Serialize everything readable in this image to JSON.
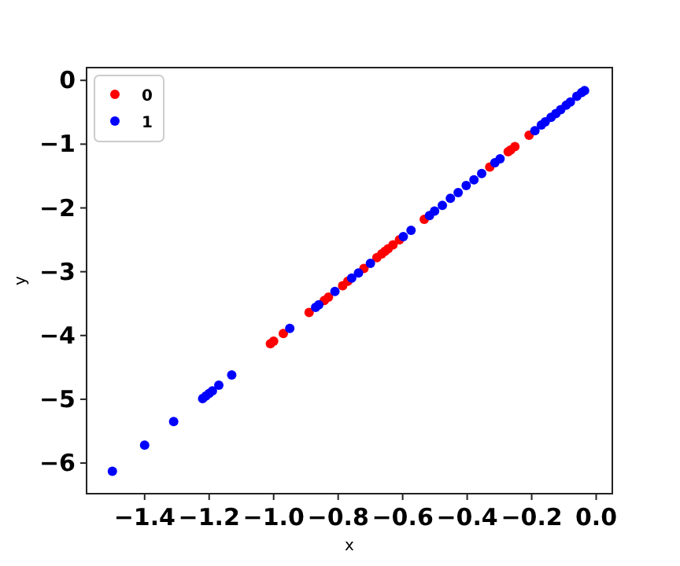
{
  "chart_data": {
    "type": "scatter",
    "xlabel": "x",
    "ylabel": "y",
    "legend": "top left",
    "marker": "circle",
    "grid": false,
    "xlim": [
      -1.58,
      0.05
    ],
    "ylim": [
      -6.48,
      0.2
    ],
    "xticks": [
      {
        "value": -1.4,
        "label": "−1.4"
      },
      {
        "value": -1.2,
        "label": "−1.2"
      },
      {
        "value": -1.0,
        "label": "−1.0"
      },
      {
        "value": -0.8,
        "label": "−0.8"
      },
      {
        "value": -0.6,
        "label": "−0.6"
      },
      {
        "value": -0.4,
        "label": "−0.4"
      },
      {
        "value": -0.2,
        "label": "−0.2"
      },
      {
        "value": 0,
        "label": "0.0"
      }
    ],
    "yticks": [
      {
        "value": -6,
        "label": "−6"
      },
      {
        "value": -5,
        "label": "−5"
      },
      {
        "value": -4,
        "label": "−4"
      },
      {
        "value": -3,
        "label": "−3"
      },
      {
        "value": -2,
        "label": "−2"
      },
      {
        "value": -1,
        "label": "−1"
      },
      0
    ],
    "series": [
      {
        "name": "0",
        "color": "#ff0000",
        "x": [
          -1.01,
          -1.0,
          -0.97,
          -0.89,
          -0.843,
          -0.83,
          -0.786,
          -0.77,
          -0.72,
          -0.68,
          -0.665,
          -0.655,
          -0.645,
          -0.63,
          -0.61,
          -0.533,
          -0.33,
          -0.273,
          -0.265,
          -0.252,
          -0.208
        ],
        "values": [
          -4.13,
          -4.09,
          -3.97,
          -3.64,
          -3.45,
          -3.4,
          -3.22,
          -3.15,
          -2.95,
          -2.78,
          -2.72,
          -2.68,
          -2.64,
          -2.58,
          -2.5,
          -2.18,
          -1.36,
          -1.12,
          -1.09,
          -1.04,
          -0.86
        ]
      },
      {
        "name": "1",
        "color": "#0000ff",
        "x": [
          -1.5,
          -1.4,
          -1.31,
          -1.22,
          -1.21,
          -1.2,
          -1.19,
          -1.17,
          -1.13,
          -0.95,
          -0.87,
          -0.86,
          -0.81,
          -0.758,
          -0.737,
          -0.7,
          -0.598,
          -0.574,
          -0.517,
          -0.501,
          -0.477,
          -0.452,
          -0.428,
          -0.403,
          -0.379,
          -0.355,
          -0.314,
          -0.298,
          -0.19,
          -0.17,
          -0.158,
          -0.14,
          -0.125,
          -0.11,
          -0.093,
          -0.08,
          -0.06,
          -0.045,
          -0.036
        ],
        "values": [
          -6.13,
          -5.72,
          -5.35,
          -4.99,
          -4.95,
          -4.91,
          -4.87,
          -4.78,
          -4.62,
          -3.89,
          -3.56,
          -3.52,
          -3.31,
          -3.1,
          -3.02,
          -2.87,
          -2.45,
          -2.35,
          -2.12,
          -2.05,
          -1.96,
          -1.85,
          -1.76,
          -1.65,
          -1.56,
          -1.46,
          -1.29,
          -1.23,
          -0.79,
          -0.7,
          -0.65,
          -0.58,
          -0.52,
          -0.46,
          -0.39,
          -0.34,
          -0.25,
          -0.19,
          -0.16
        ]
      }
    ]
  }
}
